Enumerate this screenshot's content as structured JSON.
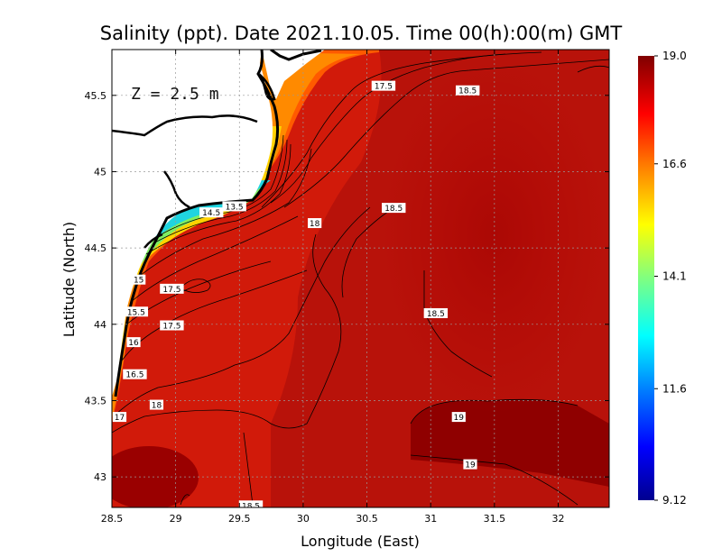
{
  "chart_data": {
    "type": "heatmap",
    "title": "Salinity (ppt). Date 2021.10.05. Time 00(h):00(m) GMT",
    "xlabel": "Longitude (East)",
    "ylabel": "Latitude (North)",
    "depth_label": "Z = 2.5 m",
    "xlim": [
      28.5,
      32.4
    ],
    "ylim": [
      42.8,
      45.8
    ],
    "x_ticks": [
      28.5,
      29,
      29.5,
      30,
      30.5,
      31,
      31.5,
      32
    ],
    "x_tick_labels": [
      "28.5",
      "29",
      "29.5",
      "30",
      "30.5",
      "31",
      "31.5",
      "32"
    ],
    "y_ticks": [
      43,
      43.5,
      44,
      44.5,
      45,
      45.5
    ],
    "y_tick_labels": [
      "43",
      "43.5",
      "44",
      "44.5",
      "45",
      "45.5"
    ],
    "grid": true,
    "colorbar": {
      "min": 9.12,
      "max": 19.0,
      "ticks": [
        19.0,
        16.6,
        14.1,
        11.6,
        9.12
      ],
      "tick_labels": [
        "19.0",
        "16.6",
        "14.1",
        "11.6",
        "9.12"
      ],
      "colormap": [
        "#00008f",
        "#0000ff",
        "#0080ff",
        "#00ffff",
        "#80ff80",
        "#ffff00",
        "#ff8000",
        "#ff0000",
        "#800000"
      ]
    },
    "contour_labels": [
      {
        "text": "17.5",
        "lon": 30.63,
        "lat": 45.56
      },
      {
        "text": "18.5",
        "lon": 31.29,
        "lat": 45.53
      },
      {
        "text": "13.5",
        "lon": 29.46,
        "lat": 44.77
      },
      {
        "text": "14.5",
        "lon": 29.28,
        "lat": 44.73
      },
      {
        "text": "18",
        "lon": 30.09,
        "lat": 44.66
      },
      {
        "text": "18.5",
        "lon": 30.71,
        "lat": 44.76
      },
      {
        "text": "15",
        "lon": 28.71,
        "lat": 44.29
      },
      {
        "text": "17.5",
        "lon": 28.97,
        "lat": 44.23
      },
      {
        "text": "15.5",
        "lon": 28.69,
        "lat": 44.08
      },
      {
        "text": "17.5",
        "lon": 28.97,
        "lat": 43.99
      },
      {
        "text": "18.5",
        "lon": 31.04,
        "lat": 44.07
      },
      {
        "text": "16",
        "lon": 28.67,
        "lat": 43.88
      },
      {
        "text": "16.5",
        "lon": 28.68,
        "lat": 43.67
      },
      {
        "text": "18",
        "lon": 28.85,
        "lat": 43.47
      },
      {
        "text": "17",
        "lon": 28.56,
        "lat": 43.39
      },
      {
        "text": "19",
        "lon": 31.22,
        "lat": 43.39
      },
      {
        "text": "19",
        "lon": 31.31,
        "lat": 43.08
      },
      {
        "text": "18.5",
        "lon": 29.59,
        "lat": 42.81
      }
    ]
  }
}
